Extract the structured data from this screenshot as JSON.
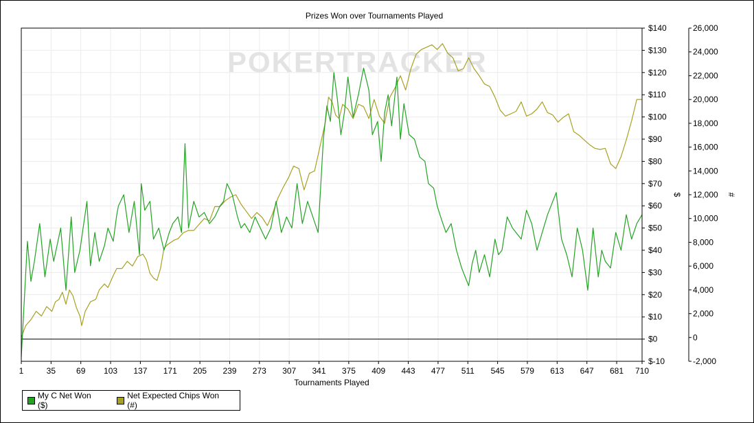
{
  "watermark": "POKERTRACKER",
  "chart_data": {
    "type": "line",
    "title": "Prizes Won over Tournaments Played",
    "xlabel": "Tournaments Played",
    "ylabel": "$",
    "y2label": "#",
    "xlim": [
      1,
      710
    ],
    "ylim": [
      -10,
      140
    ],
    "y2lim": [
      -2000,
      26000
    ],
    "x_ticks": [
      1,
      35,
      69,
      103,
      137,
      171,
      205,
      239,
      273,
      307,
      341,
      375,
      409,
      443,
      477,
      511,
      545,
      579,
      613,
      647,
      681,
      710
    ],
    "x_tick_labels": [
      "1",
      "35",
      "69",
      "103",
      "137",
      "171",
      "205",
      "239",
      "273",
      "307",
      "341",
      "375",
      "409",
      "443",
      "477",
      "511",
      "545",
      "579",
      "613",
      "647",
      "681",
      "710"
    ],
    "y_ticks": [
      -10,
      0,
      10,
      20,
      30,
      40,
      50,
      60,
      70,
      80,
      90,
      100,
      110,
      120,
      130,
      140
    ],
    "y_tick_labels": [
      "$-10",
      "$0",
      "$10",
      "$20",
      "$30",
      "$40",
      "$50",
      "$60",
      "$70",
      "$80",
      "$90",
      "$100",
      "$110",
      "$120",
      "$130",
      "$140"
    ],
    "y2_ticks": [
      -2000,
      0,
      2000,
      4000,
      6000,
      8000,
      10000,
      12000,
      14000,
      16000,
      18000,
      20000,
      22000,
      24000,
      26000
    ],
    "y2_tick_labels": [
      "-2,000",
      "0",
      "2,000",
      "4,000",
      "6,000",
      "8,000",
      "10,000",
      "12,000",
      "14,000",
      "16,000",
      "18,000",
      "20,000",
      "22,000",
      "24,000",
      "26,000"
    ],
    "grid": true,
    "legend_position": "bottom-left",
    "series": [
      {
        "name": "My C Net Won ($)",
        "axis": "left",
        "color": "#22a322",
        "x": [
          1,
          8,
          12,
          16,
          22,
          28,
          34,
          38,
          46,
          52,
          58,
          62,
          68,
          76,
          80,
          85,
          90,
          96,
          100,
          106,
          110,
          112,
          118,
          124,
          130,
          136,
          138,
          142,
          148,
          152,
          158,
          164,
          170,
          174,
          180,
          184,
          188,
          192,
          198,
          204,
          210,
          216,
          222,
          228,
          232,
          236,
          242,
          248,
          252,
          256,
          262,
          268,
          274,
          280,
          286,
          292,
          298,
          304,
          310,
          316,
          322,
          328,
          334,
          340,
          346,
          350,
          354,
          358,
          362,
          366,
          370,
          374,
          380,
          386,
          392,
          398,
          402,
          408,
          412,
          416,
          420,
          424,
          430,
          434,
          438,
          444,
          450,
          456,
          462,
          466,
          472,
          476,
          480,
          486,
          492,
          498,
          504,
          508,
          512,
          516,
          520,
          524,
          530,
          536,
          542,
          546,
          550,
          556,
          562,
          566,
          572,
          578,
          584,
          590,
          596,
          602,
          606,
          612,
          618,
          624,
          630,
          636,
          642,
          648,
          654,
          660,
          664,
          668,
          674,
          680,
          686,
          692,
          698,
          704,
          710
        ],
        "values": [
          -8,
          44,
          26,
          35,
          52,
          28,
          45,
          35,
          50,
          22,
          55,
          30,
          40,
          62,
          33,
          48,
          35,
          42,
          50,
          44,
          56,
          60,
          65,
          48,
          62,
          38,
          70,
          58,
          62,
          45,
          50,
          40,
          48,
          52,
          55,
          48,
          88,
          50,
          62,
          55,
          57,
          52,
          55,
          60,
          62,
          70,
          65,
          55,
          50,
          52,
          48,
          55,
          50,
          45,
          50,
          62,
          48,
          55,
          50,
          70,
          52,
          62,
          55,
          48,
          90,
          105,
          98,
          120,
          108,
          92,
          102,
          118,
          100,
          110,
          122,
          112,
          92,
          98,
          80,
          102,
          110,
          96,
          118,
          90,
          106,
          92,
          90,
          82,
          80,
          70,
          68,
          60,
          55,
          48,
          52,
          40,
          32,
          28,
          24,
          34,
          40,
          30,
          38,
          28,
          45,
          38,
          40,
          55,
          50,
          48,
          45,
          58,
          52,
          40,
          48,
          56,
          60,
          66,
          45,
          38,
          28,
          50,
          40,
          22,
          50,
          28,
          40,
          35,
          32,
          48,
          40,
          56,
          45,
          52,
          56
        ]
      },
      {
        "name": "Net Expected Chips Won (#)",
        "axis": "right",
        "color": "#a8a022",
        "x": [
          1,
          6,
          12,
          18,
          24,
          30,
          36,
          40,
          44,
          48,
          52,
          56,
          60,
          64,
          68,
          70,
          74,
          80,
          86,
          90,
          96,
          100,
          106,
          110,
          116,
          122,
          128,
          134,
          140,
          144,
          148,
          152,
          156,
          160,
          164,
          168,
          172,
          176,
          180,
          186,
          192,
          198,
          204,
          210,
          216,
          222,
          228,
          234,
          240,
          246,
          252,
          258,
          264,
          270,
          276,
          282,
          288,
          294,
          300,
          306,
          312,
          318,
          324,
          330,
          336,
          342,
          348,
          352,
          356,
          360,
          364,
          368,
          374,
          380,
          386,
          392,
          398,
          404,
          410,
          416,
          422,
          428,
          434,
          440,
          446,
          452,
          458,
          464,
          470,
          476,
          482,
          488,
          494,
          500,
          506,
          512,
          518,
          524,
          530,
          536,
          542,
          548,
          554,
          560,
          566,
          572,
          578,
          584,
          590,
          596,
          602,
          608,
          614,
          620,
          626,
          632,
          638,
          644,
          650,
          656,
          662,
          668,
          674,
          680,
          686,
          692,
          698,
          704,
          710
        ],
        "values": [
          0,
          1000,
          1500,
          2200,
          1800,
          2600,
          2200,
          3000,
          3200,
          3800,
          2800,
          4000,
          3500,
          2500,
          1800,
          1000,
          2200,
          3000,
          3200,
          4000,
          4500,
          4200,
          5200,
          5800,
          5800,
          6400,
          6000,
          6800,
          7000,
          6500,
          5400,
          5000,
          4800,
          5800,
          7500,
          7800,
          8000,
          8200,
          8300,
          8800,
          9000,
          9000,
          9500,
          10000,
          9800,
          11000,
          11000,
          11500,
          11800,
          12000,
          11200,
          10600,
          10000,
          10500,
          10100,
          9400,
          10400,
          11700,
          12600,
          13400,
          14400,
          14200,
          12400,
          13800,
          14000,
          16000,
          18000,
          20200,
          19800,
          18700,
          18400,
          19600,
          19200,
          18400,
          19600,
          19400,
          18400,
          20000,
          18600,
          18000,
          20200,
          21000,
          22000,
          20800,
          22600,
          23800,
          24200,
          24400,
          24600,
          24200,
          24700,
          23900,
          23500,
          22400,
          22600,
          23500,
          22600,
          22000,
          21300,
          21100,
          20200,
          19100,
          18600,
          18800,
          19000,
          19800,
          18600,
          18800,
          19200,
          19800,
          18900,
          18700,
          18100,
          18500,
          18800,
          17300,
          17000,
          16600,
          16200,
          15900,
          15800,
          15900,
          14600,
          14200,
          15200,
          16600,
          18200,
          20000,
          20000
        ]
      }
    ]
  }
}
